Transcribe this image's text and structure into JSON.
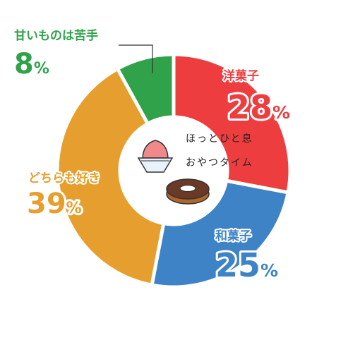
{
  "chart_data": {
    "type": "pie",
    "variant": "donut",
    "title": "",
    "center_label": [
      "ほっとひと息",
      "おやつタイム"
    ],
    "slices": [
      {
        "label": "洋菓子",
        "value": 28,
        "value_text": "28",
        "unit": "%",
        "color": "#ee3d3f"
      },
      {
        "label": "和菓子",
        "value": 25,
        "value_text": "25",
        "unit": "%",
        "color": "#3d83c6"
      },
      {
        "label": "どちらも好き",
        "value": 39,
        "value_text": "39",
        "unit": "%",
        "color": "#e69f2e"
      },
      {
        "label": "甘いものは苦手",
        "value": 8,
        "value_text": "8",
        "unit": "%",
        "color": "#2fa24a"
      }
    ],
    "start": "top",
    "direction": "clockwise",
    "icons": [
      "shaved-ice-icon",
      "donut-icon"
    ]
  }
}
